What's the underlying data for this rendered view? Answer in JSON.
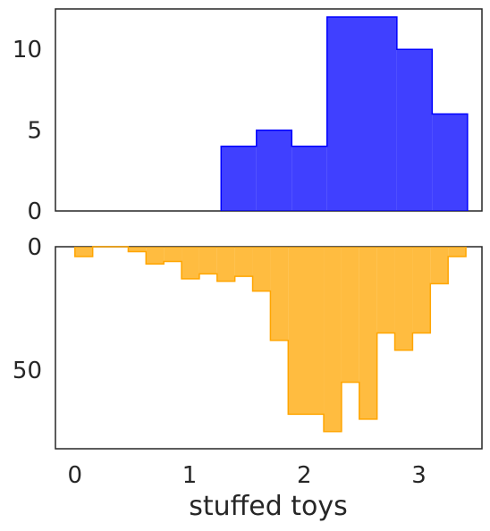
{
  "chart_data": [
    {
      "type": "histogram",
      "panel": "top",
      "orientation": "up",
      "color": "#0000ff",
      "fill_opacity": 0.75,
      "bins": [
        {
          "x0": 1.275,
          "x1": 1.583,
          "value": 4
        },
        {
          "x0": 1.583,
          "x1": 1.891,
          "value": 5
        },
        {
          "x0": 1.891,
          "x1": 2.199,
          "value": 4
        },
        {
          "x0": 2.199,
          "x1": 2.808,
          "value": 12
        },
        {
          "x0": 2.808,
          "x1": 3.116,
          "value": 10
        },
        {
          "x0": 3.116,
          "x1": 3.424,
          "value": 6
        }
      ],
      "xlim": [
        -0.17,
        3.55
      ],
      "ylim": [
        0,
        12.5
      ],
      "yticks": [
        0,
        5,
        10
      ],
      "ytick_labels": [
        "0",
        "5",
        "10"
      ]
    },
    {
      "type": "histogram",
      "panel": "bottom",
      "orientation": "down",
      "color": "#ffa500",
      "fill_opacity": 0.75,
      "bins": [
        {
          "x0": 0.0,
          "x1": 0.155,
          "value": 4
        },
        {
          "x0": 0.155,
          "x1": 0.465,
          "value": 0
        },
        {
          "x0": 0.465,
          "x1": 0.62,
          "value": 2
        },
        {
          "x0": 0.62,
          "x1": 0.775,
          "value": 7
        },
        {
          "x0": 0.775,
          "x1": 0.93,
          "value": 6
        },
        {
          "x0": 0.93,
          "x1": 1.085,
          "value": 13
        },
        {
          "x0": 1.085,
          "x1": 1.24,
          "value": 11
        },
        {
          "x0": 1.24,
          "x1": 1.395,
          "value": 14
        },
        {
          "x0": 1.395,
          "x1": 1.55,
          "value": 12
        },
        {
          "x0": 1.55,
          "x1": 1.705,
          "value": 18
        },
        {
          "x0": 1.705,
          "x1": 1.86,
          "value": 38
        },
        {
          "x0": 1.86,
          "x1": 2.17,
          "value": 68
        },
        {
          "x0": 2.17,
          "x1": 2.325,
          "value": 75
        },
        {
          "x0": 2.325,
          "x1": 2.48,
          "value": 55
        },
        {
          "x0": 2.48,
          "x1": 2.635,
          "value": 70
        },
        {
          "x0": 2.635,
          "x1": 2.79,
          "value": 35
        },
        {
          "x0": 2.79,
          "x1": 2.945,
          "value": 42
        },
        {
          "x0": 2.945,
          "x1": 3.1,
          "value": 35
        },
        {
          "x0": 3.1,
          "x1": 3.255,
          "value": 15
        },
        {
          "x0": 3.255,
          "x1": 3.41,
          "value": 4
        }
      ],
      "xlim": [
        -0.17,
        3.55
      ],
      "ylim": [
        0,
        82
      ],
      "yticks": [
        0,
        50
      ],
      "ytick_labels": [
        "0",
        "50"
      ],
      "xticks": [
        0,
        1,
        2,
        3
      ],
      "xtick_labels": [
        "0",
        "1",
        "2",
        "3"
      ],
      "xlabel": "stuffed toys"
    }
  ]
}
